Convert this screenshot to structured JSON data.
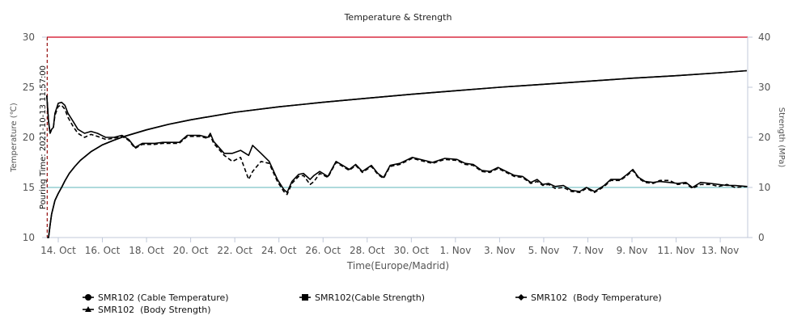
{
  "chart_data": {
    "type": "line",
    "title": "Temperature & Strength",
    "xlabel": "Time(Europe/Madrid)",
    "ylabel_left": "Temperature (℃)",
    "ylabel_right": "Strength (MPa)",
    "ylim_left": [
      10,
      30
    ],
    "ylim_right": [
      0,
      40
    ],
    "x_unit": "days since 14 Oct 2021 00:00",
    "xlim_days": [
      -0.5,
      31.6
    ],
    "x_ticks": [
      {
        "day": 0,
        "label": "14. Oct"
      },
      {
        "day": 2,
        "label": "16. Oct"
      },
      {
        "day": 4,
        "label": "18. Oct"
      },
      {
        "day": 6,
        "label": "20. Oct"
      },
      {
        "day": 8,
        "label": "22. Oct"
      },
      {
        "day": 10,
        "label": "24. Oct"
      },
      {
        "day": 12,
        "label": "26. Oct"
      },
      {
        "day": 14,
        "label": "28. Oct"
      },
      {
        "day": 16,
        "label": "30. Oct"
      },
      {
        "day": 18,
        "label": "1. Nov"
      },
      {
        "day": 20,
        "label": "3. Nov"
      },
      {
        "day": 22,
        "label": "5. Nov"
      },
      {
        "day": 24,
        "label": "7. Nov"
      },
      {
        "day": 26,
        "label": "9. Nov"
      },
      {
        "day": 28,
        "label": "11. Nov"
      },
      {
        "day": 30,
        "label": "13. Nov"
      }
    ],
    "y_ticks_left": [
      "10",
      "15",
      "20",
      "25",
      "30"
    ],
    "y_ticks_right": [
      "0",
      "10",
      "20",
      "30",
      "40"
    ],
    "plot_lines": [
      {
        "axis": "left",
        "value": 30,
        "color": "#d0021b"
      },
      {
        "axis": "left",
        "value": 15,
        "color": "#7ec4c8"
      }
    ],
    "pouring": {
      "day": -0.5,
      "label": "Pouring Time: 2021-10-13 11:57:00",
      "color": "#9b1c1c"
    },
    "temp_days": [
      -0.52,
      -0.44,
      -0.37,
      -0.3,
      -0.22,
      -0.15,
      0,
      0.15,
      0.3,
      0.44,
      0.67,
      0.89,
      1.19,
      1.48,
      1.78,
      2.15,
      2.52,
      2.89,
      3.19,
      3.48,
      3.81,
      4.37,
      4.74,
      5.48,
      5.85,
      6.41,
      6.78,
      6.89,
      7.04,
      7.52,
      7.89,
      8.26,
      8.63,
      8.81,
      9.19,
      9.56,
      9.93,
      10.22,
      10.37,
      10.59,
      10.89,
      11.11,
      11.41,
      11.59,
      11.85,
      12.22,
      12.59,
      12.89,
      13.19,
      13.48,
      13.78,
      14.19,
      14.48,
      14.74,
      15.04,
      15.48,
      16.04,
      16.59,
      16.96,
      17.52,
      18.07,
      18.44,
      18.81,
      19.19,
      19.56,
      19.93,
      20.3,
      20.67,
      21.04,
      21.41,
      21.7,
      21.96,
      22.22,
      22.52,
      22.89,
      23.26,
      23.63,
      23.93,
      24.3,
      24.74,
      25.04,
      25.48,
      25.78,
      26.04,
      26.3,
      26.59,
      26.96,
      27.26,
      27.7,
      28.07,
      28.44,
      28.74,
      29.11,
      29.56,
      29.93,
      30.3,
      30.67,
      31.22
    ],
    "strength_days": [
      -0.5,
      -0.44,
      -0.37,
      -0.3,
      -0.15,
      0,
      0.15,
      0.3,
      0.5,
      0.75,
      1,
      1.5,
      2,
      2.5,
      3,
      4,
      5,
      6,
      8,
      10,
      12,
      14,
      16,
      18,
      20,
      22,
      24,
      26,
      28,
      30,
      31.2
    ],
    "series": [
      {
        "name": "SMR102 (Cable Temperature)",
        "axis": "left",
        "marker": "circle",
        "dash": false,
        "color": "#000000",
        "values": [
          24.2,
          21.6,
          20.4,
          20.8,
          21.0,
          22.4,
          23.4,
          23.5,
          23.2,
          22.4,
          21.6,
          20.8,
          20.4,
          20.6,
          20.4,
          20.0,
          20.0,
          20.2,
          19.8,
          19.0,
          19.4,
          19.4,
          19.5,
          19.5,
          20.2,
          20.2,
          20.0,
          20.4,
          19.6,
          18.4,
          18.4,
          18.7,
          18.2,
          19.2,
          18.4,
          17.6,
          15.8,
          14.8,
          14.5,
          15.6,
          16.3,
          16.4,
          15.8,
          16.2,
          16.6,
          16.1,
          17.6,
          17.2,
          16.8,
          17.3,
          16.6,
          17.2,
          16.4,
          16.0,
          17.2,
          17.4,
          18.0,
          17.7,
          17.5,
          17.9,
          17.8,
          17.4,
          17.3,
          16.7,
          16.6,
          17.0,
          16.6,
          16.2,
          16.1,
          15.5,
          15.8,
          15.3,
          15.4,
          15.1,
          15.2,
          14.7,
          14.6,
          15.0,
          14.6,
          15.2,
          15.8,
          15.8,
          16.3,
          16.8,
          16.0,
          15.6,
          15.5,
          15.6,
          15.5,
          15.4,
          15.5,
          15.0,
          15.5,
          15.4,
          15.3,
          15.2,
          15.2,
          15.1
        ]
      },
      {
        "name": "SMR102(Cable Strength)",
        "axis": "right",
        "marker": "square",
        "dash": false,
        "color": "#000000",
        "values": [
          0,
          0,
          2.5,
          4.7,
          7.4,
          8.8,
          10,
          11.3,
          12.8,
          14.2,
          15.4,
          17.2,
          18.5,
          19.4,
          20.2,
          21.5,
          22.6,
          23.5,
          25,
          26.1,
          27,
          27.8,
          28.6,
          29.3,
          30,
          30.6,
          31.2,
          31.8,
          32.3,
          32.9,
          33.3
        ]
      },
      {
        "name": "SMR102  (Body Temperature)",
        "axis": "left",
        "marker": "diamond",
        "dash": true,
        "color": "#000000",
        "values": [
          24.2,
          21.6,
          20.4,
          20.8,
          21.0,
          22.2,
          23.1,
          23.2,
          22.8,
          22.0,
          21.1,
          20.4,
          20.0,
          20.3,
          20.1,
          19.8,
          19.9,
          20.1,
          19.7,
          18.9,
          19.3,
          19.3,
          19.4,
          19.4,
          20.1,
          20.1,
          19.9,
          20.2,
          19.4,
          18.2,
          17.6,
          18.0,
          15.8,
          16.6,
          17.6,
          17.4,
          15.6,
          14.6,
          14.3,
          15.4,
          16.1,
          16.2,
          15.3,
          15.6,
          16.4,
          16.0,
          17.5,
          17.1,
          16.7,
          17.2,
          16.5,
          17.1,
          16.3,
          15.9,
          17.1,
          17.3,
          17.9,
          17.6,
          17.4,
          17.8,
          17.7,
          17.3,
          17.2,
          16.6,
          16.5,
          16.9,
          16.5,
          16.1,
          16.0,
          15.4,
          15.6,
          15.2,
          15.3,
          14.9,
          15.0,
          14.6,
          14.5,
          14.9,
          14.5,
          15.1,
          15.7,
          15.7,
          16.2,
          16.7,
          15.9,
          15.5,
          15.4,
          15.7,
          15.7,
          15.3,
          15.4,
          14.9,
          15.3,
          15.3,
          15.1,
          15.3,
          15.0,
          15.1
        ]
      },
      {
        "name": "SMR102  (Body Strength)",
        "axis": "right",
        "marker": "triangle",
        "dash": false,
        "color": "#000000",
        "values": [
          0,
          0,
          2.5,
          4.7,
          7.4,
          8.8,
          10,
          11.3,
          12.8,
          14.2,
          15.4,
          17.2,
          18.5,
          19.4,
          20.2,
          21.5,
          22.6,
          23.5,
          25,
          26.1,
          27,
          27.8,
          28.6,
          29.3,
          30,
          30.6,
          31.2,
          31.8,
          32.3,
          32.9,
          33.3
        ]
      }
    ],
    "legend_position": "bottom"
  }
}
